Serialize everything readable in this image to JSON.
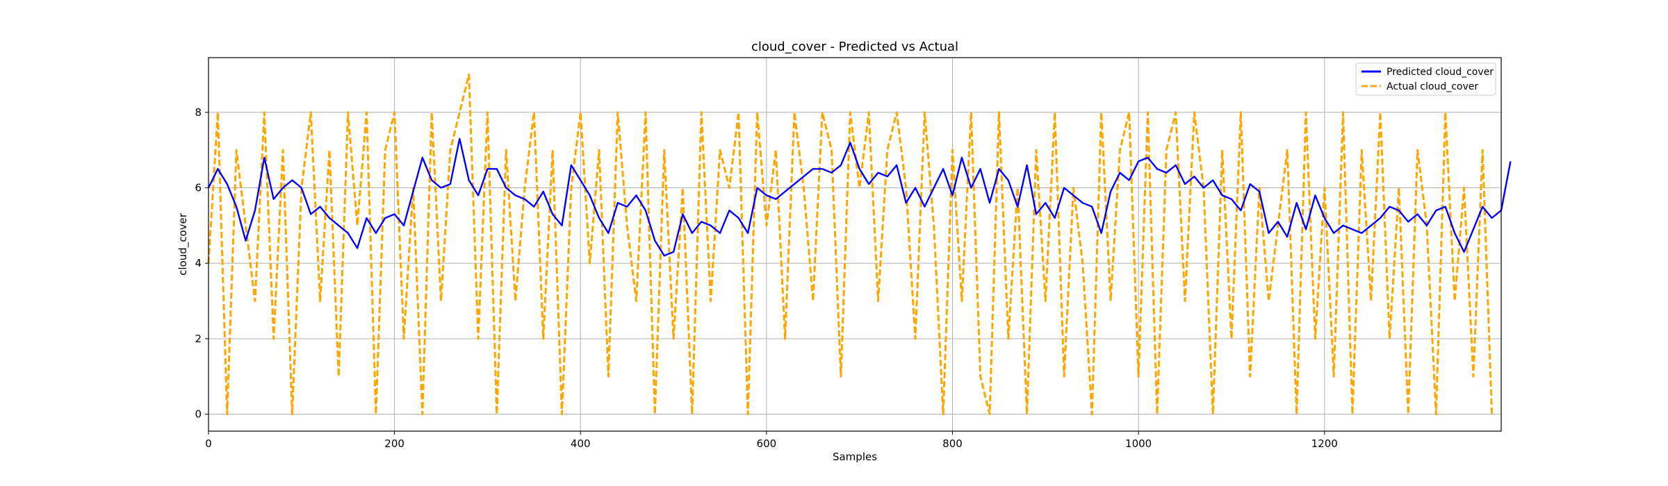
{
  "chart_data": {
    "type": "line",
    "title": "cloud_cover - Predicted vs Actual",
    "xlabel": "Samples",
    "ylabel": "cloud_cover",
    "xlim": [
      0,
      1390
    ],
    "ylim": [
      -0.45,
      9.45
    ],
    "xticks": [
      0,
      200,
      400,
      600,
      800,
      1000,
      1200
    ],
    "yticks": [
      0,
      2,
      4,
      6,
      8
    ],
    "grid": true,
    "legend_position": "top-right",
    "x_step": 10,
    "series": [
      {
        "name": "Predicted cloud_cover",
        "color": "#0000ff",
        "style": "solid",
        "values": [
          6.0,
          6.5,
          6.1,
          5.5,
          4.6,
          5.4,
          6.8,
          5.7,
          6.0,
          6.2,
          6.0,
          5.3,
          5.5,
          5.2,
          5.0,
          4.8,
          4.4,
          5.2,
          4.8,
          5.2,
          5.3,
          5.0,
          5.9,
          6.8,
          6.2,
          6.0,
          6.1,
          7.3,
          6.2,
          5.8,
          6.5,
          6.5,
          6.0,
          5.8,
          5.7,
          5.5,
          5.9,
          5.3,
          5.0,
          6.6,
          6.2,
          5.8,
          5.2,
          4.8,
          5.6,
          5.5,
          5.8,
          5.4,
          4.6,
          4.2,
          4.3,
          5.3,
          4.8,
          5.1,
          5.0,
          4.8,
          5.4,
          5.2,
          4.8,
          6.0,
          5.8,
          5.7,
          5.9,
          6.1,
          6.3,
          6.5,
          6.5,
          6.4,
          6.6,
          7.2,
          6.5,
          6.1,
          6.4,
          6.3,
          6.6,
          5.6,
          6.0,
          5.5,
          6.0,
          6.5,
          5.8,
          6.8,
          6.0,
          6.5,
          5.6,
          6.5,
          6.2,
          5.5,
          6.6,
          5.3,
          5.6,
          5.2,
          6.0,
          5.8,
          5.6,
          5.5,
          4.8,
          5.9,
          6.4,
          6.2,
          6.7,
          6.8,
          6.5,
          6.4,
          6.6,
          6.1,
          6.3,
          6.0,
          6.2,
          5.8,
          5.7,
          5.4,
          6.1,
          5.9,
          4.8,
          5.1,
          4.7,
          5.6,
          4.9,
          5.8,
          5.2,
          4.8,
          5.0,
          4.9,
          4.8,
          5.0,
          5.2,
          5.5,
          5.4,
          5.1,
          5.3,
          5.0,
          5.4,
          5.5,
          4.8,
          4.3,
          4.9,
          5.5,
          5.2,
          5.4,
          6.7
        ]
      },
      {
        "name": "Actual cloud_cover",
        "color": "#ffa500",
        "style": "dashed",
        "values": [
          4.0,
          8.0,
          0.0,
          7.0,
          5.0,
          3.0,
          8.0,
          2.0,
          7.0,
          0.0,
          6.0,
          8.0,
          3.0,
          7.0,
          1.0,
          8.0,
          5.0,
          8.0,
          0.0,
          7.0,
          8.0,
          2.0,
          6.0,
          0.0,
          8.0,
          3.0,
          7.0,
          8.0,
          9.0,
          2.0,
          8.0,
          0.0,
          7.0,
          3.0,
          6.0,
          8.0,
          2.0,
          7.0,
          0.0,
          6.0,
          8.0,
          4.0,
          7.0,
          1.0,
          8.0,
          5.0,
          3.0,
          8.0,
          0.0,
          7.0,
          2.0,
          6.0,
          0.0,
          8.0,
          3.0,
          7.0,
          6.0,
          8.0,
          0.0,
          8.0,
          5.0,
          7.0,
          2.0,
          8.0,
          6.0,
          3.0,
          8.0,
          7.0,
          1.0,
          8.0,
          6.0,
          8.0,
          3.0,
          7.0,
          8.0,
          6.0,
          2.0,
          8.0,
          5.0,
          0.0,
          7.0,
          3.0,
          8.0,
          1.0,
          0.0,
          8.0,
          2.0,
          6.0,
          0.0,
          7.0,
          3.0,
          8.0,
          1.0,
          6.0,
          4.0,
          0.0,
          8.0,
          3.0,
          7.0,
          8.0,
          1.0,
          8.0,
          0.0,
          7.0,
          8.0,
          3.0,
          8.0,
          6.0,
          0.0,
          7.0,
          2.0,
          8.0,
          1.0,
          6.0,
          3.0,
          5.0,
          7.0,
          0.0,
          8.0,
          2.0,
          6.0,
          1.0,
          8.0,
          0.0,
          7.0,
          3.0,
          8.0,
          2.0,
          6.0,
          0.0,
          7.0,
          5.0,
          0.0,
          8.0,
          3.0,
          6.0,
          1.0,
          7.0,
          0.0
        ]
      }
    ]
  }
}
